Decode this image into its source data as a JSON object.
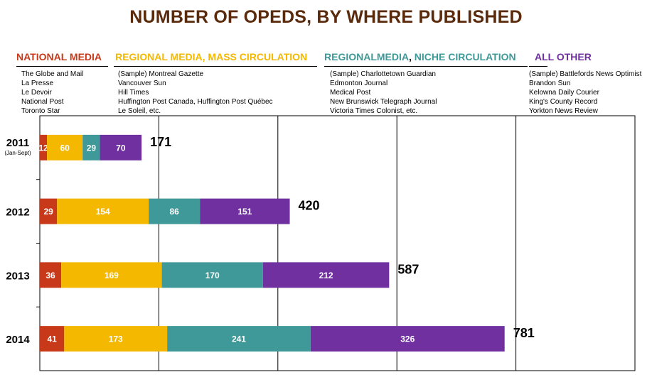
{
  "title": "NUMBER OF OPEDS, BY WHERE PUBLISHED",
  "categories_header": [
    {
      "parts": [
        {
          "text": "NATIONAL MEDIA",
          "color": "#c8391a"
        }
      ],
      "examples": [
        "The Globe and Mail",
        "La Presse",
        "Le Devoir",
        "National Post",
        "Toronto Star"
      ]
    },
    {
      "parts": [
        {
          "text": "REGIONAL MEDIA, MASS CIRCULATION",
          "color": "#f5b800"
        }
      ],
      "examples": [
        "(Sample) Montreal Gazette",
        "Vancouver Sun",
        "Hill Times",
        "Huffington Post Canada,  Huffington Post Québec",
        "Le Soleil, etc."
      ]
    },
    {
      "parts": [
        {
          "text": "REGIONALMEDIA",
          "color": "#3f9999"
        },
        {
          "text": ", ",
          "color": "#000000"
        },
        {
          "text": "NICHE CIRCULATION",
          "color": "#3f9999"
        }
      ],
      "examples": [
        "(Sample) Charlottetown Guardian",
        "Edmonton  Journal",
        "Medical Post",
        "New Brunswick Telegraph Journal",
        "Victoria Times Colonist, etc."
      ]
    },
    {
      "parts": [
        {
          "text": "ALL  OTHER",
          "color": "#7030a0"
        }
      ],
      "examples": [
        "(Sample) Battlefords News Optimist",
        "Brandon Sun",
        "Kelowna Daily Courier",
        "King's County Record",
        "Yorkton News Review"
      ]
    }
  ],
  "chart_data": {
    "type": "bar",
    "orientation": "horizontal",
    "stacked": true,
    "title": "NUMBER OF OPEDS, BY WHERE PUBLISHED",
    "categories": [
      "2011",
      "2012",
      "2013",
      "2014"
    ],
    "category_sublabels": [
      "(Jan-Sept)",
      "",
      "",
      ""
    ],
    "series": [
      {
        "name": "NATIONAL MEDIA",
        "color": "#c8391a",
        "values": [
          12,
          29,
          36,
          41
        ]
      },
      {
        "name": "REGIONAL MEDIA, MASS CIRCULATION",
        "color": "#f5b800",
        "values": [
          60,
          154,
          169,
          173
        ]
      },
      {
        "name": "REGIONALMEDIA, NICHE CIRCULATION",
        "color": "#3f9999",
        "values": [
          29,
          86,
          170,
          241
        ]
      },
      {
        "name": "ALL  OTHER",
        "color": "#7030a0",
        "values": [
          70,
          151,
          212,
          326
        ]
      }
    ],
    "totals": [
      171,
      420,
      587,
      781
    ],
    "xlim": [
      0,
      1000
    ],
    "x_gridlines": [
      200,
      400,
      600,
      800
    ],
    "grid": true,
    "legend": "top"
  }
}
